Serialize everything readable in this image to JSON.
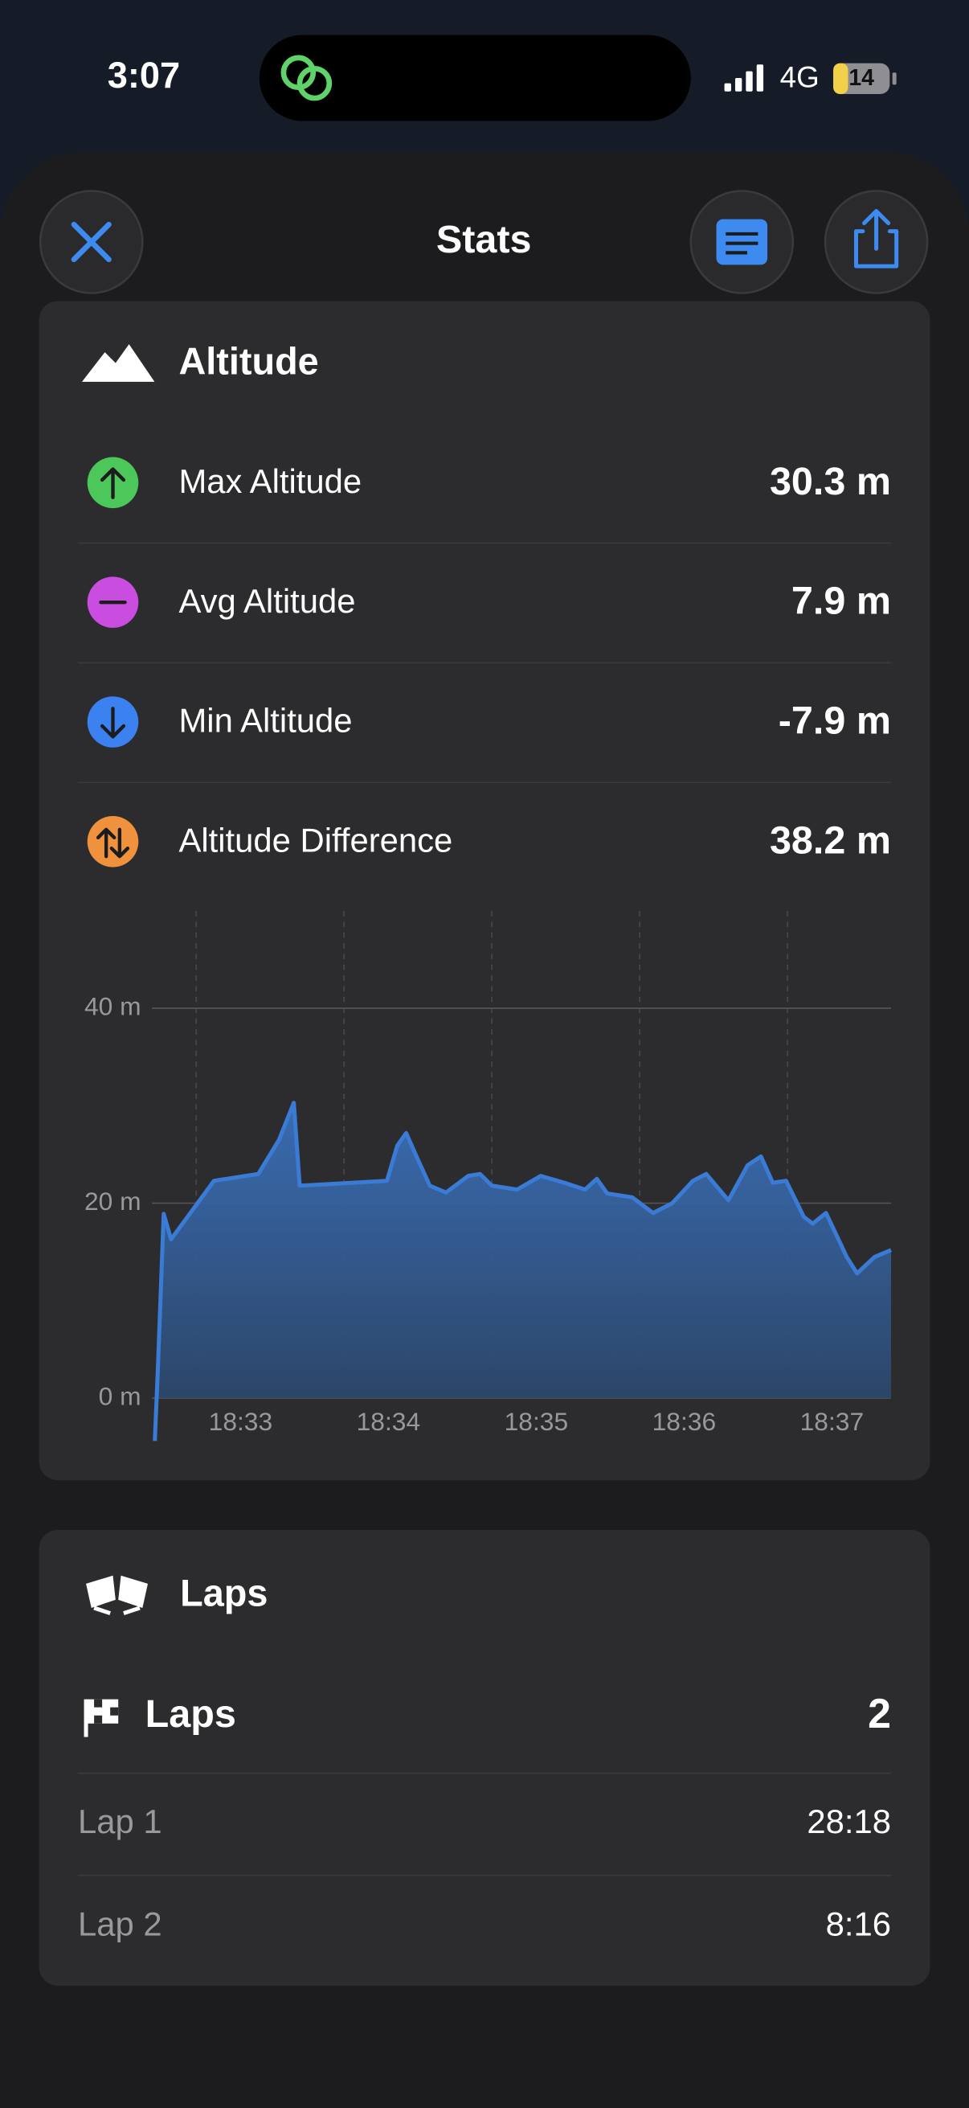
{
  "status_bar": {
    "time": "3:07",
    "network": "4G",
    "battery": "14"
  },
  "header": {
    "title": "Stats"
  },
  "altitude": {
    "title": "Altitude",
    "rows": [
      {
        "label": "Max Altitude",
        "value": "30.3 m"
      },
      {
        "label": "Avg Altitude",
        "value": "7.9 m"
      },
      {
        "label": "Min Altitude",
        "value": "-7.9 m"
      },
      {
        "label": "Altitude Difference",
        "value": "38.2 m"
      }
    ]
  },
  "chart_data": {
    "type": "area",
    "color": "#3a7bd5",
    "x": [
      1112.72,
      1112.74,
      1112.78,
      1112.83,
      1113.12,
      1113.42,
      1113.56,
      1113.66,
      1113.7,
      1114.29,
      1114.36,
      1114.42,
      1114.49,
      1114.58,
      1114.69,
      1114.84,
      1114.92,
      1115.0,
      1115.17,
      1115.33,
      1115.49,
      1115.63,
      1115.71,
      1115.78,
      1115.95,
      1116.09,
      1116.22,
      1116.36,
      1116.45,
      1116.6,
      1116.73,
      1116.82,
      1116.9,
      1116.99,
      1117.11,
      1117.17,
      1117.26,
      1117.4,
      1117.47,
      1117.59,
      1117.7
    ],
    "values": [
      -4.4,
      2.8,
      18.9,
      16.3,
      22.3,
      23.0,
      26.5,
      30.3,
      21.8,
      22.3,
      25.9,
      27.2,
      24.8,
      21.8,
      21.1,
      22.8,
      23.0,
      21.8,
      21.4,
      22.8,
      22.1,
      21.4,
      22.5,
      21.0,
      20.6,
      19.0,
      20.0,
      22.3,
      23.0,
      20.3,
      23.9,
      24.8,
      22.1,
      22.3,
      18.6,
      17.9,
      19.0,
      14.5,
      12.8,
      14.5,
      15.2
    ],
    "ylim": [
      -4.5,
      50
    ],
    "yticks": [
      {
        "value": 0,
        "label": "0 m"
      },
      {
        "value": 20,
        "label": "20 m"
      },
      {
        "value": 40,
        "label": "40 m"
      }
    ],
    "xlim": [
      1112.7,
      1117.7
    ],
    "xticks": [
      {
        "value": 1113,
        "label": "18:33"
      },
      {
        "value": 1114,
        "label": "18:34"
      },
      {
        "value": 1115,
        "label": "18:35"
      },
      {
        "value": 1116,
        "label": "18:36"
      },
      {
        "value": 1117,
        "label": "18:37"
      }
    ],
    "grid": true
  },
  "laps": {
    "title": "Laps",
    "total_label": "Laps",
    "total_value": "2",
    "rows": [
      {
        "label": "Lap 1",
        "time": "28:18"
      },
      {
        "label": "Lap 2",
        "time": "8:16"
      }
    ]
  }
}
